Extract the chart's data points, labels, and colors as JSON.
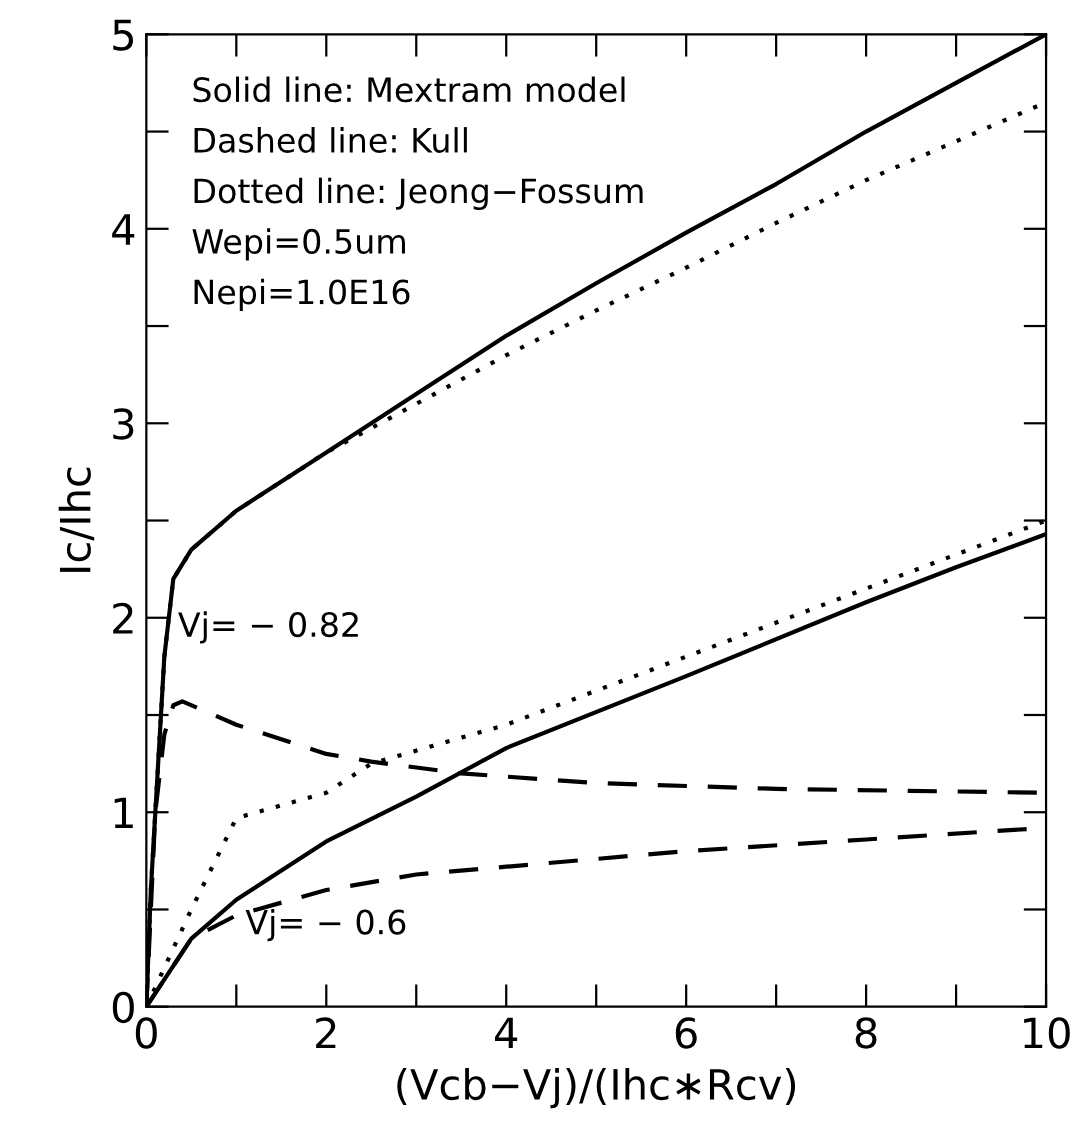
{
  "chart_data": {
    "type": "line",
    "xlabel": "(Vcb−Vj)/(Ihc∗Rcv)",
    "ylabel": "Ic/Ihc",
    "xlim": [
      0,
      10
    ],
    "ylim": [
      0,
      5
    ],
    "xticks": [
      0,
      {
        "value": 1,
        "label": null
      },
      2,
      {
        "value": 3,
        "label": null
      },
      4,
      {
        "value": 5,
        "label": null
      },
      6,
      {
        "value": 7,
        "label": null
      },
      8,
      {
        "value": 9,
        "label": null
      },
      10
    ],
    "yticks": [
      0,
      {
        "value": 0.5,
        "label": null
      },
      1,
      {
        "value": 1.5,
        "label": null
      },
      2,
      {
        "value": 2.5,
        "label": null
      },
      3,
      {
        "value": 3.5,
        "label": null
      },
      4,
      {
        "value": 4.5,
        "label": null
      },
      5
    ],
    "grid": false,
    "legend": false,
    "series": [
      {
        "color": "#000000",
        "line_style": "solid",
        "x": [
          0,
          0.05,
          0.1,
          0.2,
          0.3,
          0.5,
          1,
          2,
          3,
          4,
          5,
          6,
          7,
          8,
          9,
          10
        ],
        "values": [
          0,
          0.6,
          1.0,
          1.8,
          2.2,
          2.35,
          2.55,
          2.85,
          3.15,
          3.45,
          3.72,
          3.98,
          4.23,
          4.5,
          4.75,
          5.0
        ]
      },
      {
        "color": "#000000",
        "line_style": "dotted",
        "x": [
          0,
          0.05,
          0.1,
          0.2,
          0.3,
          0.5,
          1,
          2,
          3,
          4,
          5,
          6,
          7,
          8,
          9,
          10
        ],
        "values": [
          0,
          0.6,
          1.0,
          1.8,
          2.2,
          2.35,
          2.55,
          2.85,
          3.1,
          3.35,
          3.58,
          3.8,
          4.03,
          4.25,
          4.45,
          4.65
        ]
      },
      {
        "color": "#000000",
        "line_style": "dashed",
        "x": [
          0,
          0.1,
          0.2,
          0.3,
          0.4,
          1,
          2,
          2.5,
          3.5,
          5,
          7,
          10
        ],
        "values": [
          0,
          1.0,
          1.4,
          1.55,
          1.57,
          1.45,
          1.3,
          1.26,
          1.2,
          1.15,
          1.12,
          1.1
        ]
      },
      {
        "color": "#000000",
        "line_style": "solid",
        "x": [
          0,
          0.5,
          1,
          2,
          3,
          4,
          6,
          8,
          9,
          10
        ],
        "values": [
          0,
          0.35,
          0.55,
          0.85,
          1.08,
          1.33,
          1.7,
          2.08,
          2.26,
          2.43
        ]
      },
      {
        "color": "#000000",
        "line_style": "dotted",
        "x": [
          0,
          0.5,
          1,
          2,
          2.5,
          4,
          6,
          8,
          10
        ],
        "values": [
          0,
          0.5,
          0.97,
          1.1,
          1.25,
          1.45,
          1.8,
          2.15,
          2.5
        ]
      },
      {
        "color": "#000000",
        "line_style": "dashed",
        "x": [
          0,
          0.5,
          1,
          2,
          3,
          4,
          6,
          8,
          10
        ],
        "values": [
          0,
          0.35,
          0.47,
          0.6,
          0.68,
          0.72,
          0.8,
          0.86,
          0.92
        ]
      }
    ],
    "annotations": [
      "Solid line: Mextram model",
      "Dashed line: Kull",
      "Dotted line: Jeong−Fossum",
      "Wepi=0.5um",
      "Nepi=1.0E16",
      {
        "text": "Vj= − 0.82",
        "x": 0.35,
        "y": 1.95
      },
      {
        "text": "Vj= − 0.6",
        "x": 1.1,
        "y": 0.42
      }
    ]
  }
}
